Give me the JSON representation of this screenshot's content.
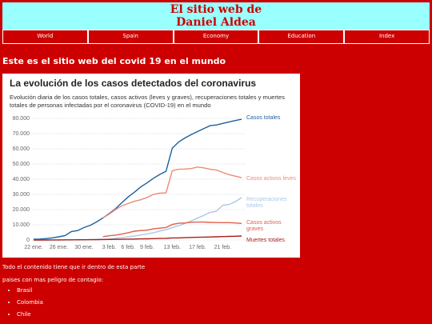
{
  "header": {
    "title_lines": [
      "El sitio web de",
      "Daniel Aldea"
    ]
  },
  "nav": [
    "World",
    "Spain",
    "Economy",
    "Education",
    "Index"
  ],
  "heading": "Este es el sitio web del covid 19 en el mundo",
  "chart_data": {
    "type": "line",
    "title": "La evolución de los casos detectados del coronavirus",
    "subtitle": "Evolución diaria de los casos totales, casos activos (leves y graves), recuperaciones totales y muertes totales de personas infectadas por el coronavirus (COVID-19) en el mundo",
    "categories": [
      "22 ene.",
      null,
      null,
      null,
      "26 ene.",
      null,
      null,
      null,
      "30 ene.",
      null,
      null,
      null,
      "3 feb.",
      null,
      null,
      "6 feb.",
      null,
      null,
      "9 feb.",
      null,
      null,
      null,
      "13 feb.",
      null,
      null,
      null,
      "17 feb.",
      null,
      null,
      null,
      "21 feb.",
      null,
      null,
      null
    ],
    "ylim": [
      0,
      80000
    ],
    "yticks": [
      0,
      {
        "value": 10000,
        "label": "10.000"
      },
      {
        "value": 20000,
        "label": "20.000"
      },
      {
        "value": 30000,
        "label": "30.000"
      },
      {
        "value": 40000,
        "label": "40.000"
      },
      {
        "value": 50000,
        "label": "50.000"
      },
      {
        "value": 60000,
        "label": "60.000"
      },
      {
        "value": 70000,
        "label": "70.000"
      },
      {
        "value": 80000,
        "label": "80.000"
      }
    ],
    "grid": true,
    "series": [
      {
        "name": "Casos totales",
        "color": "#1f5f9f",
        "values": [
          555,
          650,
          940,
          1400,
          2100,
          2900,
          5600,
          6200,
          8200,
          9700,
          11900,
          14500,
          17400,
          20600,
          24500,
          28300,
          31500,
          34900,
          37600,
          40600,
          43100,
          45200,
          60300,
          64500,
          67100,
          69300,
          71300,
          73300,
          75200,
          75700,
          76700,
          77700,
          78600,
          79400
        ]
      },
      {
        "name": "Casos activos leves",
        "color": "#ef8a76",
        "values": [
          null,
          null,
          null,
          null,
          null,
          null,
          null,
          null,
          null,
          null,
          null,
          14500,
          17000,
          20000,
          22500,
          24000,
          25500,
          26500,
          28000,
          30000,
          30800,
          31000,
          45500,
          46500,
          46700,
          47000,
          48000,
          47500,
          46500,
          46000,
          44500,
          43000,
          42000,
          41000
        ]
      },
      {
        "name": "Recuperaciones totales",
        "color": "#a9c8e8",
        "values": [
          28,
          30,
          36,
          39,
          49,
          58,
          101,
          120,
          135,
          214,
          275,
          463,
          614,
          1153,
          1540,
          2050,
          2649,
          3281,
          3996,
          4740,
          5915,
          6728,
          8101,
          9440,
          10844,
          12583,
          14384,
          16157,
          18177,
          18890,
          22886,
          23394,
          25227,
          27905
        ]
      },
      {
        "name": "Casos activos graves",
        "color": "#e0604c",
        "values": [
          null,
          null,
          null,
          null,
          null,
          null,
          null,
          null,
          null,
          null,
          null,
          2200,
          2800,
          3200,
          3900,
          4800,
          5800,
          6200,
          6500,
          7300,
          7800,
          8200,
          10200,
          11000,
          11200,
          11700,
          11800,
          11800,
          11600,
          11500,
          11400,
          11400,
          11200,
          10900
        ]
      },
      {
        "name": "Muertes totales",
        "color": "#a8201a",
        "values": [
          17,
          18,
          26,
          56,
          56,
          80,
          106,
          132,
          170,
          213,
          259,
          304,
          362,
          426,
          492,
          565,
          638,
          724,
          813,
          910,
          1018,
          1115,
          1369,
          1383,
          1526,
          1669,
          1775,
          1873,
          2009,
          2126,
          2247,
          2360,
          2460,
          2618
        ]
      }
    ]
  },
  "content": {
    "note": "Todo el contenido tiene que ir dentro de esta parte",
    "intro": "paises con mas peligro de contagio:",
    "list": [
      "Brasil",
      "Colombia",
      "Chile"
    ]
  }
}
